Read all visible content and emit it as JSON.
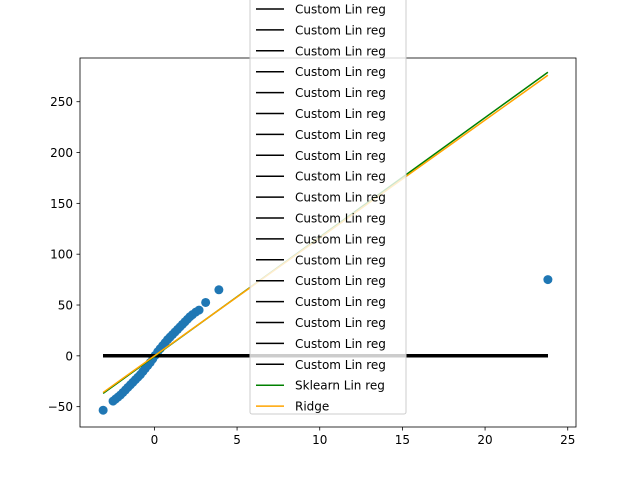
{
  "chart_data": {
    "type": "scatter",
    "title": "",
    "xlabel": "",
    "ylabel": "",
    "xlim": [
      -4.5,
      25.5
    ],
    "ylim": [
      -70,
      293
    ],
    "xticks": [
      0,
      5,
      10,
      15,
      20,
      25
    ],
    "yticks": [
      -50,
      0,
      50,
      100,
      150,
      200,
      250
    ],
    "grid": false,
    "legend_position": "top-center",
    "scatter_points": {
      "color": "#1f77b4",
      "points": [
        [
          -3.1,
          -53.5
        ],
        [
          -2.5,
          -44.5
        ],
        [
          -2.35,
          -42.5
        ],
        [
          -2.2,
          -40.5
        ],
        [
          -2.05,
          -38.5
        ],
        [
          -1.9,
          -36.0
        ],
        [
          -1.75,
          -33.5
        ],
        [
          -1.6,
          -31.0
        ],
        [
          -1.45,
          -28.5
        ],
        [
          -1.3,
          -26.0
        ],
        [
          -1.15,
          -23.5
        ],
        [
          -1.0,
          -21.0
        ],
        [
          -0.85,
          -18.5
        ],
        [
          -0.7,
          -15.5
        ],
        [
          -0.55,
          -12.5
        ],
        [
          -0.4,
          -9.5
        ],
        [
          -0.25,
          -6.5
        ],
        [
          -0.1,
          -3.0
        ],
        [
          0.05,
          0.5
        ],
        [
          0.2,
          4.0
        ],
        [
          0.35,
          7.0
        ],
        [
          0.5,
          10.0
        ],
        [
          0.65,
          13.0
        ],
        [
          0.8,
          16.0
        ],
        [
          0.95,
          18.5
        ],
        [
          1.1,
          21.0
        ],
        [
          1.25,
          23.5
        ],
        [
          1.4,
          26.0
        ],
        [
          1.55,
          28.5
        ],
        [
          1.7,
          31.0
        ],
        [
          1.85,
          33.5
        ],
        [
          2.0,
          36.0
        ],
        [
          2.15,
          38.5
        ],
        [
          2.3,
          40.5
        ],
        [
          2.5,
          43.0
        ],
        [
          2.7,
          45.0
        ],
        [
          3.1,
          52.5
        ],
        [
          3.9,
          65.0
        ],
        [
          23.8,
          75.0
        ]
      ]
    },
    "series": [
      {
        "name": "Custom Lin reg",
        "color": "#000000",
        "x": [
          -3.1,
          23.8
        ],
        "y": [
          0.0,
          0.0
        ]
      },
      {
        "name": "Custom Lin reg",
        "color": "#000000",
        "x": [
          -3.1,
          23.8
        ],
        "y": [
          0.0,
          0.0
        ]
      },
      {
        "name": "Custom Lin reg",
        "color": "#000000",
        "x": [
          -3.1,
          23.8
        ],
        "y": [
          0.0,
          0.0
        ]
      },
      {
        "name": "Custom Lin reg",
        "color": "#000000",
        "x": [
          -3.1,
          23.8
        ],
        "y": [
          0.0,
          0.0
        ]
      },
      {
        "name": "Custom Lin reg",
        "color": "#000000",
        "x": [
          -3.1,
          23.8
        ],
        "y": [
          0.0,
          0.0
        ]
      },
      {
        "name": "Custom Lin reg",
        "color": "#000000",
        "x": [
          -3.1,
          23.8
        ],
        "y": [
          0.0,
          0.0
        ]
      },
      {
        "name": "Custom Lin reg",
        "color": "#000000",
        "x": [
          -3.1,
          23.8
        ],
        "y": [
          0.0,
          0.0
        ]
      },
      {
        "name": "Custom Lin reg",
        "color": "#000000",
        "x": [
          -3.1,
          23.8
        ],
        "y": [
          0.0,
          0.0
        ]
      },
      {
        "name": "Custom Lin reg",
        "color": "#000000",
        "x": [
          -3.1,
          23.8
        ],
        "y": [
          0.0,
          0.0
        ]
      },
      {
        "name": "Custom Lin reg",
        "color": "#000000",
        "x": [
          -3.1,
          23.8
        ],
        "y": [
          0.0,
          0.0
        ]
      },
      {
        "name": "Custom Lin reg",
        "color": "#000000",
        "x": [
          -3.1,
          23.8
        ],
        "y": [
          0.0,
          0.0
        ]
      },
      {
        "name": "Custom Lin reg",
        "color": "#000000",
        "x": [
          -3.1,
          23.8
        ],
        "y": [
          0.0,
          0.0
        ]
      },
      {
        "name": "Custom Lin reg",
        "color": "#000000",
        "x": [
          -3.1,
          23.8
        ],
        "y": [
          0.0,
          0.0
        ]
      },
      {
        "name": "Custom Lin reg",
        "color": "#000000",
        "x": [
          -3.1,
          23.8
        ],
        "y": [
          0.0,
          0.0
        ]
      },
      {
        "name": "Custom Lin reg",
        "color": "#000000",
        "x": [
          -3.1,
          23.8
        ],
        "y": [
          0.0,
          0.0
        ]
      },
      {
        "name": "Custom Lin reg",
        "color": "#000000",
        "x": [
          -3.1,
          23.8
        ],
        "y": [
          0.0,
          0.0
        ]
      },
      {
        "name": "Custom Lin reg",
        "color": "#000000",
        "x": [
          -3.1,
          23.8
        ],
        "y": [
          0.0,
          0.0
        ]
      },
      {
        "name": "Custom Lin reg",
        "color": "#000000",
        "x": [
          -3.1,
          23.8
        ],
        "y": [
          0.0,
          0.0
        ]
      },
      {
        "name": "Sklearn Lin reg",
        "color": "#008000",
        "x": [
          -3.1,
          23.8
        ],
        "y": [
          -37.0,
          279.0
        ]
      },
      {
        "name": "Ridge",
        "color": "#ffa500",
        "x": [
          -3.1,
          23.8
        ],
        "y": [
          -36.0,
          276.0
        ]
      }
    ]
  }
}
